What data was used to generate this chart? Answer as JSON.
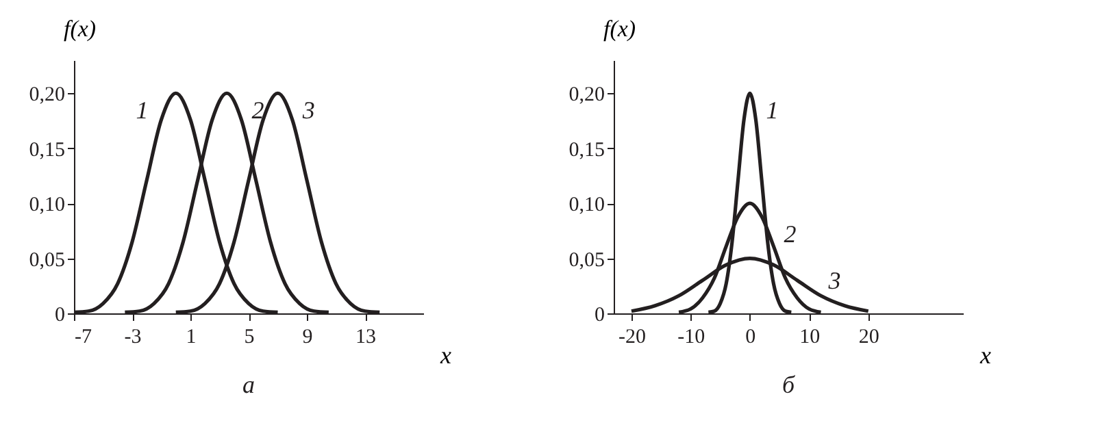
{
  "chart_data": [
    {
      "type": "line",
      "title": "а",
      "xlabel": "x",
      "ylabel": "f(x)",
      "xlim": [
        -7,
        17
      ],
      "xticks": [
        -7,
        -3,
        1,
        5,
        9,
        13
      ],
      "ylim": [
        0,
        0.23
      ],
      "yticks": [
        0,
        {
          "value": 0.05,
          "label": "0,05"
        },
        {
          "value": 0.1,
          "label": "0,10"
        },
        {
          "value": 0.15,
          "label": "0,15"
        },
        {
          "value": 0.2,
          "label": "0,20"
        }
      ],
      "grid": false,
      "marker": "none",
      "line_style": "solid",
      "series": [
        {
          "name": "1",
          "color": "#231f20",
          "x": [
            -7,
            -6,
            -5,
            -4,
            -3,
            -2,
            -1,
            0,
            1,
            2,
            3,
            4,
            5,
            6,
            7
          ],
          "values": [
            0.001,
            0.002,
            0.009,
            0.027,
            0.065,
            0.121,
            0.176,
            0.2,
            0.176,
            0.121,
            0.065,
            0.027,
            0.009,
            0.002,
            0.001
          ]
        },
        {
          "name": "2",
          "color": "#231f20",
          "x": [
            -3.5,
            -2.5,
            -1.5,
            -0.5,
            0.5,
            1.5,
            2.5,
            3.5,
            4.5,
            5.5,
            6.5,
            7.5,
            8.5,
            9.5,
            10.5
          ],
          "values": [
            0.001,
            0.002,
            0.009,
            0.027,
            0.065,
            0.121,
            0.176,
            0.2,
            0.176,
            0.121,
            0.065,
            0.027,
            0.009,
            0.002,
            0.001
          ]
        },
        {
          "name": "3",
          "color": "#231f20",
          "x": [
            0,
            1,
            2,
            3,
            4,
            5,
            6,
            7,
            8,
            9,
            10,
            11,
            12,
            13,
            14
          ],
          "values": [
            0.001,
            0.002,
            0.009,
            0.027,
            0.065,
            0.121,
            0.176,
            0.2,
            0.176,
            0.121,
            0.065,
            0.027,
            0.009,
            0.002,
            0.001
          ]
        }
      ]
    },
    {
      "type": "line",
      "title": "б",
      "xlabel": "x",
      "ylabel": "f(x)",
      "xlim": [
        -23,
        36
      ],
      "xticks": [
        -20,
        -10,
        0,
        10,
        20
      ],
      "ylim": [
        0,
        0.23
      ],
      "yticks": [
        0,
        {
          "value": 0.05,
          "label": "0,05"
        },
        {
          "value": 0.1,
          "label": "0,10"
        },
        {
          "value": 0.15,
          "label": "0,15"
        },
        {
          "value": 0.2,
          "label": "0,20"
        }
      ],
      "grid": false,
      "marker": "none",
      "line_style": "solid",
      "series": [
        {
          "name": "1",
          "color": "#231f20",
          "x": [
            -7,
            -6,
            -5,
            -4,
            -3,
            -2,
            -1,
            0,
            1,
            2,
            3,
            4,
            5,
            6,
            7
          ],
          "values": [
            0.001,
            0.002,
            0.009,
            0.027,
            0.065,
            0.121,
            0.176,
            0.2,
            0.176,
            0.121,
            0.065,
            0.027,
            0.009,
            0.002,
            0.001
          ]
        },
        {
          "name": "2",
          "color": "#231f20",
          "x": [
            -12,
            -10,
            -8,
            -6,
            -4,
            -2,
            0,
            2,
            4,
            6,
            8,
            10,
            12
          ],
          "values": [
            0.001,
            0.004,
            0.014,
            0.032,
            0.061,
            0.088,
            0.1,
            0.088,
            0.061,
            0.032,
            0.014,
            0.004,
            0.001
          ]
        },
        {
          "name": "3",
          "color": "#231f20",
          "x": [
            -20,
            -16,
            -12,
            -8,
            -4,
            0,
            4,
            8,
            12,
            16,
            20
          ],
          "values": [
            0.002,
            0.007,
            0.016,
            0.03,
            0.044,
            0.05,
            0.044,
            0.03,
            0.016,
            0.007,
            0.002
          ]
        }
      ]
    }
  ]
}
